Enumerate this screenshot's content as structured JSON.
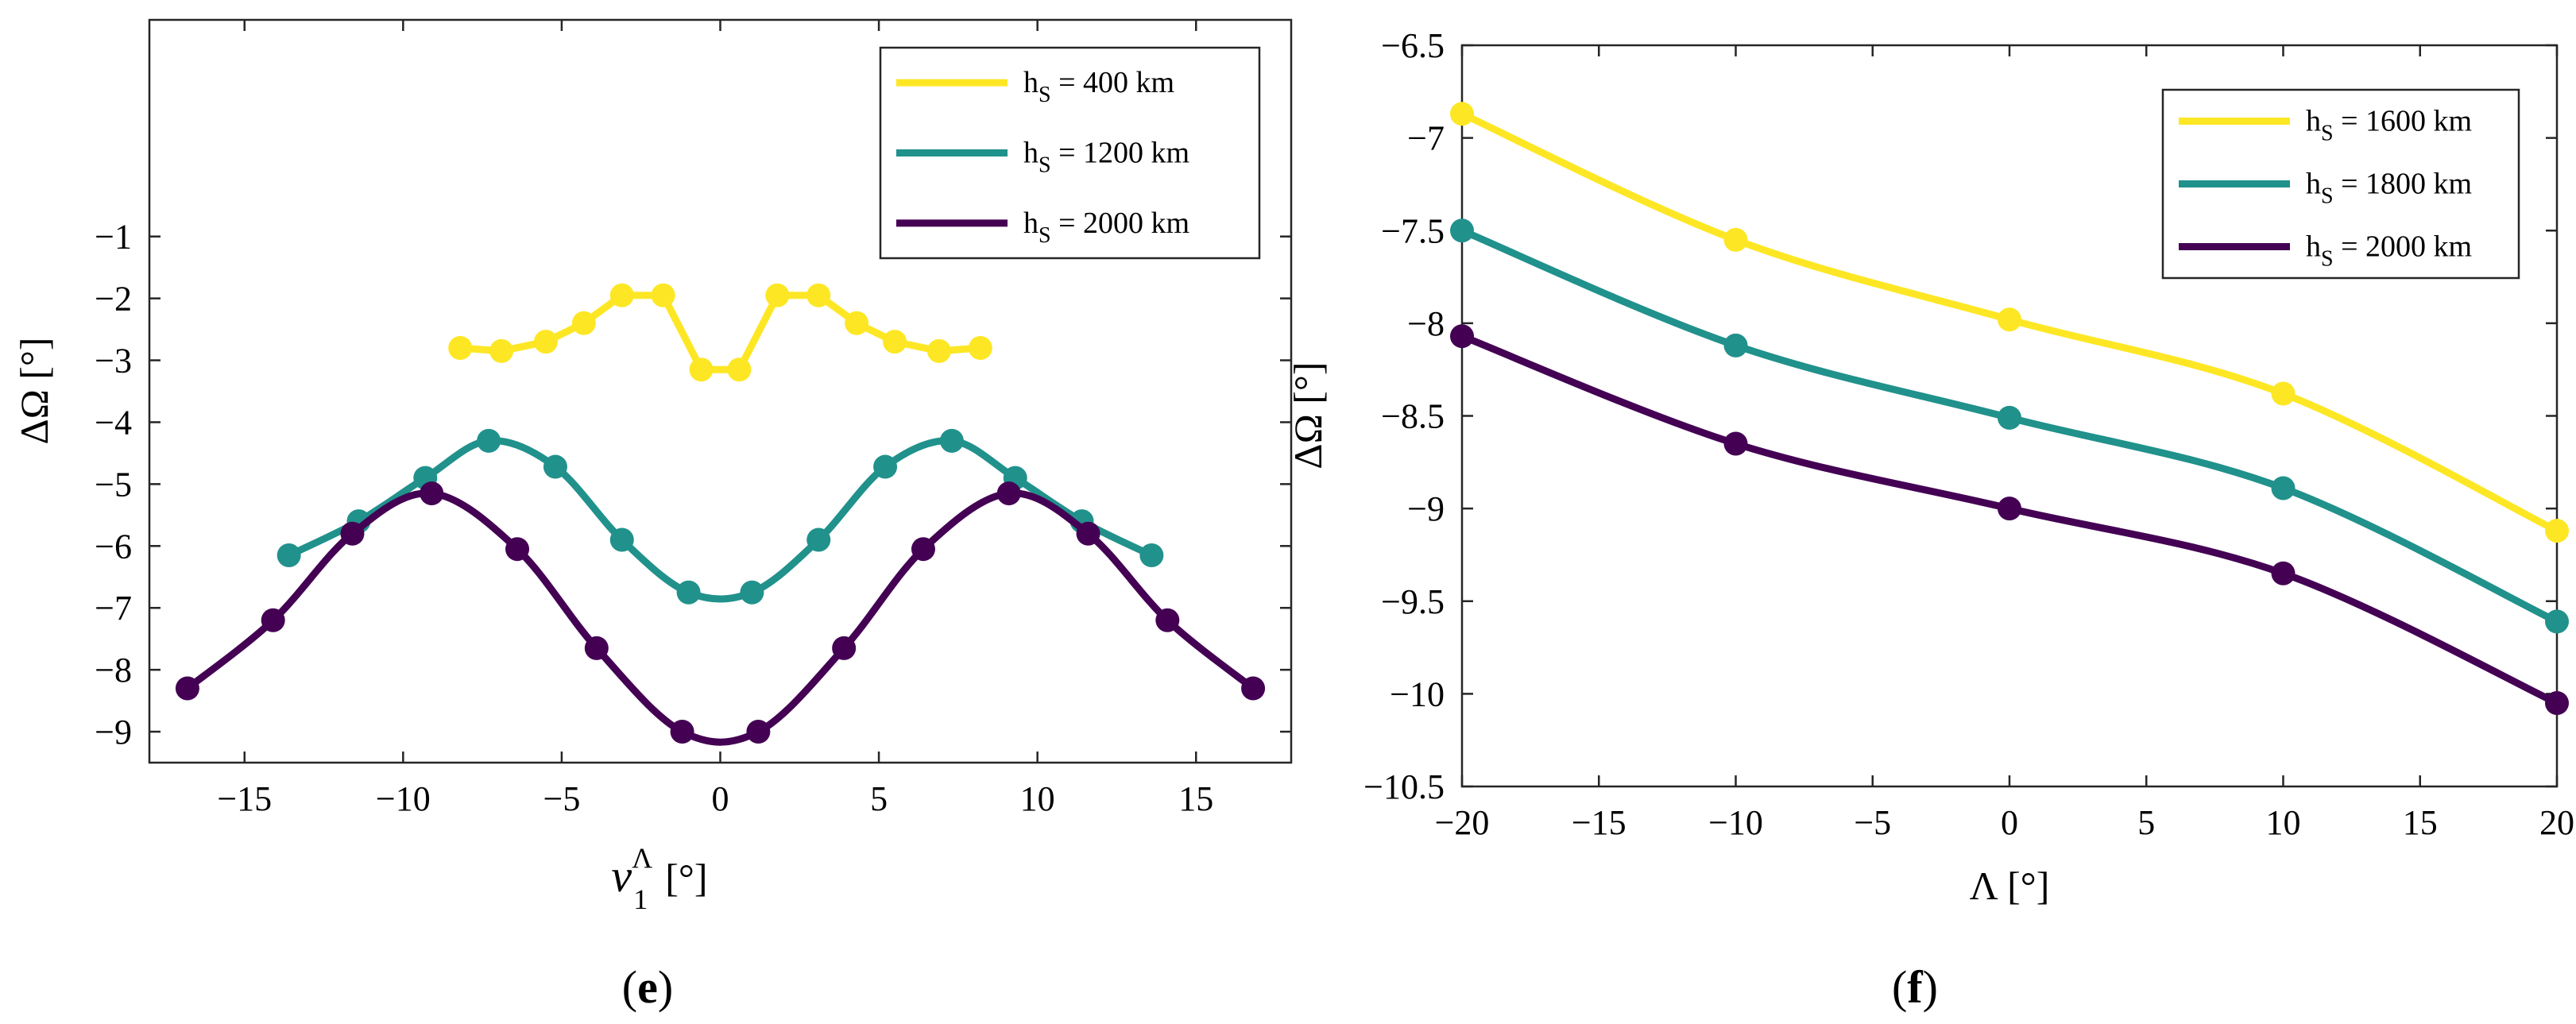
{
  "chart_data": [
    {
      "panel": "e",
      "type": "line",
      "xlabel": "ν",
      "xlabel_sup": "Λ",
      "xlabel_sub": "1",
      "xlabel_unit": "[°]",
      "ylabel": "ΔΩ [°]",
      "xlim": [
        -18,
        18
      ],
      "ylim": [
        -9.5,
        2.5
      ],
      "xticks": [
        -15,
        -10,
        -5,
        0,
        5,
        10,
        15
      ],
      "yticks": [
        -9,
        -8,
        -7,
        -6,
        -5,
        -4,
        -3,
        -2,
        -1
      ],
      "grid": false,
      "legend_position": "top-right",
      "series": [
        {
          "name": "h",
          "name_sub": "S",
          "name_rest": " = 400 km",
          "color": "#FDE725",
          "smooth": false,
          "x": [
            -8.2,
            -6.9,
            -5.5,
            -4.3,
            -3.1,
            -1.8,
            -0.6,
            0.6,
            1.8,
            3.1,
            4.3,
            5.5,
            6.9,
            8.2
          ],
          "y": [
            -2.8,
            -2.85,
            -2.7,
            -2.4,
            -1.95,
            -1.95,
            -3.15,
            -3.15,
            -1.95,
            -1.95,
            -2.4,
            -2.7,
            -2.85,
            -2.8
          ]
        },
        {
          "name": "h",
          "name_sub": "S",
          "name_rest": " = 1200 km",
          "color": "#21918C",
          "smooth": true,
          "x": [
            -13.6,
            -11.4,
            -9.3,
            -7.3,
            -5.2,
            -3.1,
            -1.0,
            1.0,
            3.1,
            5.2,
            7.3,
            9.3,
            11.4,
            13.6
          ],
          "y": [
            -6.15,
            -5.6,
            -4.9,
            -4.3,
            -4.72,
            -5.9,
            -6.75,
            -6.75,
            -5.9,
            -4.72,
            -4.3,
            -4.9,
            -5.6,
            -6.15
          ]
        },
        {
          "name": "h",
          "name_sub": "S",
          "name_rest": " = 2000 km",
          "color": "#440154",
          "smooth": true,
          "x": [
            -16.8,
            -14.1,
            -11.6,
            -9.1,
            -6.4,
            -3.9,
            -1.2,
            1.2,
            3.9,
            6.4,
            9.1,
            11.6,
            14.1,
            16.8
          ],
          "y": [
            -8.3,
            -7.2,
            -5.8,
            -5.15,
            -6.05,
            -7.65,
            -9.0,
            -9.0,
            -7.65,
            -6.05,
            -5.15,
            -5.8,
            -7.2,
            -8.3
          ]
        }
      ]
    },
    {
      "panel": "f",
      "type": "line",
      "xlabel": "Λ [°]",
      "ylabel": "ΔΩ [°]",
      "xlim": [
        -20,
        20
      ],
      "ylim": [
        -10.5,
        -6.5
      ],
      "xticks": [
        -20,
        -15,
        -10,
        -5,
        0,
        5,
        10,
        15,
        20
      ],
      "yticks": [
        -10.5,
        -10,
        -9.5,
        -9,
        -8.5,
        -8,
        -7.5,
        -7,
        -6.5
      ],
      "grid": false,
      "legend_position": "top-right",
      "series": [
        {
          "name": "h",
          "name_sub": "S",
          "name_rest": " = 1600 km",
          "color": "#FDE725",
          "smooth": true,
          "x": [
            -20,
            -10,
            0,
            10,
            20
          ],
          "y": [
            -6.87,
            -7.55,
            -7.98,
            -8.38,
            -9.12
          ]
        },
        {
          "name": "h",
          "name_sub": "S",
          "name_rest": " = 1800 km",
          "color": "#21918C",
          "smooth": true,
          "x": [
            -20,
            -10,
            0,
            10,
            20
          ],
          "y": [
            -7.5,
            -8.12,
            -8.51,
            -8.89,
            -9.61
          ]
        },
        {
          "name": "h",
          "name_sub": "S",
          "name_rest": " = 2000 km",
          "color": "#440154",
          "smooth": true,
          "x": [
            -20,
            -10,
            0,
            10,
            20
          ],
          "y": [
            -8.07,
            -8.65,
            -9.0,
            -9.35,
            -10.05
          ]
        }
      ]
    }
  ],
  "panel_labels": [
    "(e)",
    "(f)"
  ]
}
